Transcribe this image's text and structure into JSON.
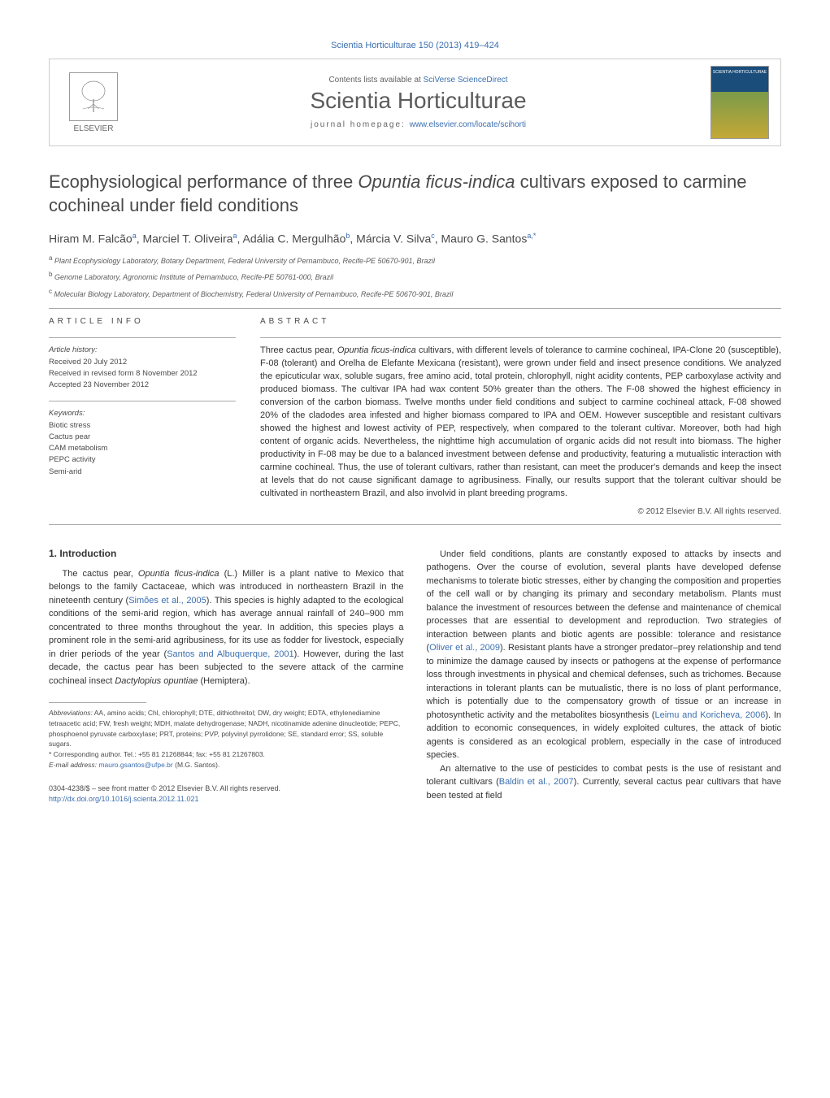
{
  "header": {
    "citation": "Scientia Horticulturae 150 (2013) 419–424",
    "contents_line_prefix": "Contents lists available at ",
    "contents_line_link": "SciVerse ScienceDirect",
    "journal_name": "Scientia Horticulturae",
    "homepage_label": "journal homepage: ",
    "homepage_url": "www.elsevier.com/locate/scihorti",
    "publisher": "ELSEVIER"
  },
  "title": "Ecophysiological performance of three <em>Opuntia ficus-indica</em> cultivars exposed to carmine cochineal under field conditions",
  "authors_html": "Hiram M. Falcão<sup>a</sup>, Marciel T. Oliveira<sup>a</sup>, Adália C. Mergulhão<sup>b</sup>, Márcia V. Silva<sup>c</sup>, Mauro G. Santos<sup>a,*</sup>",
  "affiliations": [
    "<sup>a</sup> Plant Ecophysiology Laboratory, Botany Department, Federal University of Pernambuco, Recife-PE 50670-901, Brazil",
    "<sup>b</sup> Genome Laboratory, Agronomic Institute of Pernambuco, Recife-PE 50761-000, Brazil",
    "<sup>c</sup> Molecular Biology Laboratory, Department of Biochemistry, Federal University of Pernambuco, Recife-PE 50670-901, Brazil"
  ],
  "article_info": {
    "label": "ARTICLE INFO",
    "history_hdr": "Article history:",
    "history": [
      "Received 20 July 2012",
      "Received in revised form 8 November 2012",
      "Accepted 23 November 2012"
    ],
    "keywords_hdr": "Keywords:",
    "keywords": [
      "Biotic stress",
      "Cactus pear",
      "CAM metabolism",
      "PEPC activity",
      "Semi-arid"
    ]
  },
  "abstract": {
    "label": "ABSTRACT",
    "text": "Three cactus pear, <em>Opuntia ficus-indica</em> cultivars, with different levels of tolerance to carmine cochineal, IPA-Clone 20 (susceptible), F-08 (tolerant) and Orelha de Elefante Mexicana (resistant), were grown under field and insect presence conditions. We analyzed the epicuticular wax, soluble sugars, free amino acid, total protein, chlorophyll, night acidity contents, PEP carboxylase activity and produced biomass. The cultivar IPA had wax content 50% greater than the others. The F-08 showed the highest efficiency in conversion of the carbon biomass. Twelve months under field conditions and subject to carmine cochineal attack, F-08 showed 20% of the cladodes area infested and higher biomass compared to IPA and OEM. However susceptible and resistant cultivars showed the highest and lowest activity of PEP, respectively, when compared to the tolerant cultivar. Moreover, both had high content of organic acids. Nevertheless, the nighttime high accumulation of organic acids did not result into biomass. The higher productivity in F-08 may be due to a balanced investment between defense and productivity, featuring a mutualistic interaction with carmine cochineal. Thus, the use of tolerant cultivars, rather than resistant, can meet the producer's demands and keep the insect at levels that do not cause significant damage to agribusiness. Finally, our results support that the tolerant cultivar should be cultivated in northeastern Brazil, and also involvid in plant breeding programs.",
    "copyright": "© 2012 Elsevier B.V. All rights reserved."
  },
  "body": {
    "heading": "1.  Introduction",
    "left_paras": [
      "The cactus pear, <em>Opuntia ficus-indica</em> (L.) Miller is a plant native to Mexico that belongs to the family Cactaceae, which was introduced in northeastern Brazil in the nineteenth century (<a class=\"cite\" href=\"#\">Simões et al., 2005</a>). This species is highly adapted to the ecological conditions of the semi-arid region, which has average annual rainfall of 240–900 mm concentrated to three months throughout the year. In addition, this species plays a prominent role in the semi-arid agribusiness, for its use as fodder for livestock, especially in drier periods of the year (<a class=\"cite\" href=\"#\">Santos and Albuquerque, 2001</a>). However, during the last decade, the cactus pear has been subjected to the severe attack of the carmine cochineal insect <em>Dactylopius opuntiae</em> (Hemiptera)."
    ],
    "right_paras": [
      "Under field conditions, plants are constantly exposed to attacks by insects and pathogens. Over the course of evolution, several plants have developed defense mechanisms to tolerate biotic stresses, either by changing the composition and properties of the cell wall or by changing its primary and secondary metabolism. Plants must balance the investment of resources between the defense and maintenance of chemical processes that are essential to development and reproduction. Two strategies of interaction between plants and biotic agents are possible: tolerance and resistance (<a class=\"cite\" href=\"#\">Oliver et al., 2009</a>). Resistant plants have a stronger predator–prey relationship and tend to minimize the damage caused by insects or pathogens at the expense of performance loss through investments in physical and chemical defenses, such as trichomes. Because interactions in tolerant plants can be mutualistic, there is no loss of plant performance, which is potentially due to the compensatory growth of tissue or an increase in photosynthetic activity and the metabolites biosynthesis (<a class=\"cite\" href=\"#\">Leimu and Koricheva, 2006</a>). In addition to economic consequences, in widely exploited cultures, the attack of biotic agents is considered as an ecological problem, especially in the case of introduced species.",
      "An alternative to the use of pesticides to combat pests is the use of resistant and tolerant cultivars (<a class=\"cite\" href=\"#\">Baldin et al., 2007</a>). Currently, several cactus pear cultivars that have been tested at field"
    ]
  },
  "footnotes": {
    "abbrev_label": "Abbreviations:",
    "abbrev_text": " AA, amino acids; Chl, chlorophyll; DTE, dithiothreitol; DW, dry weight; EDTA, ethylenediamine tetraacetic acid; FW, fresh weight; MDH, malate dehydrogenase; NADH, nicotinamide adenine dinucleotide; PEPC, phosphoenol pyruvate carboxylase; PRT, proteins; PVP, polyvinyl pyrrolidone; SE, standard error; SS, soluble sugars.",
    "corr_marker": "*",
    "corr_text": " Corresponding author. Tel.: +55 81 21268844; fax: +55 81 21267803.",
    "email_label": "E-mail address: ",
    "email": "mauro.gsantos@ufpe.br",
    "email_suffix": " (M.G. Santos)."
  },
  "footer": {
    "line1": "0304-4238/$ – see front matter © 2012 Elsevier B.V. All rights reserved.",
    "doi": "http://dx.doi.org/10.1016/j.scienta.2012.11.021"
  },
  "colors": {
    "link": "#3b6fb0",
    "text": "#333333",
    "muted": "#636363",
    "rule": "#aaaaaa"
  },
  "typography": {
    "title_fontsize": 22,
    "journal_fontsize": 28,
    "body_fontsize": 11,
    "meta_fontsize": 9.5,
    "footnote_fontsize": 8.5
  }
}
